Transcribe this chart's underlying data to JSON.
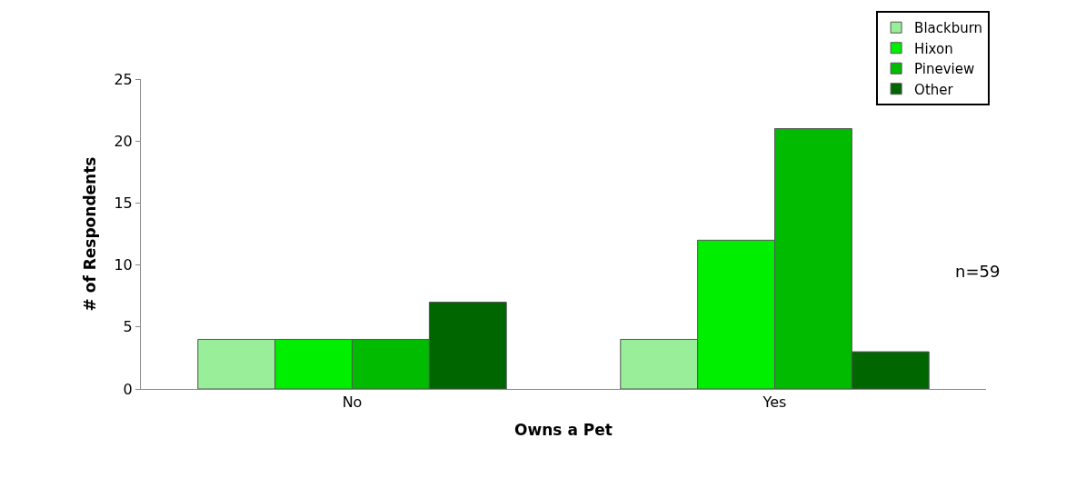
{
  "chart_data": {
    "type": "bar",
    "xlabel": "Owns a Pet",
    "ylabel": "# of Respondents",
    "categories": [
      "No",
      "Yes"
    ],
    "series": [
      {
        "name": "Blackburn",
        "color": "#99ee99",
        "values": [
          4,
          4
        ]
      },
      {
        "name": "Hixon",
        "color": "#00ee00",
        "values": [
          4,
          12
        ]
      },
      {
        "name": "Pineview",
        "color": "#00bb00",
        "values": [
          4,
          21
        ]
      },
      {
        "name": "Other",
        "color": "#006600",
        "values": [
          7,
          3
        ]
      }
    ],
    "ylim": [
      0,
      25
    ],
    "yticks": [
      0,
      5,
      10,
      15,
      20,
      25
    ],
    "legend": "top right",
    "annotations": [
      "n=59"
    ]
  }
}
